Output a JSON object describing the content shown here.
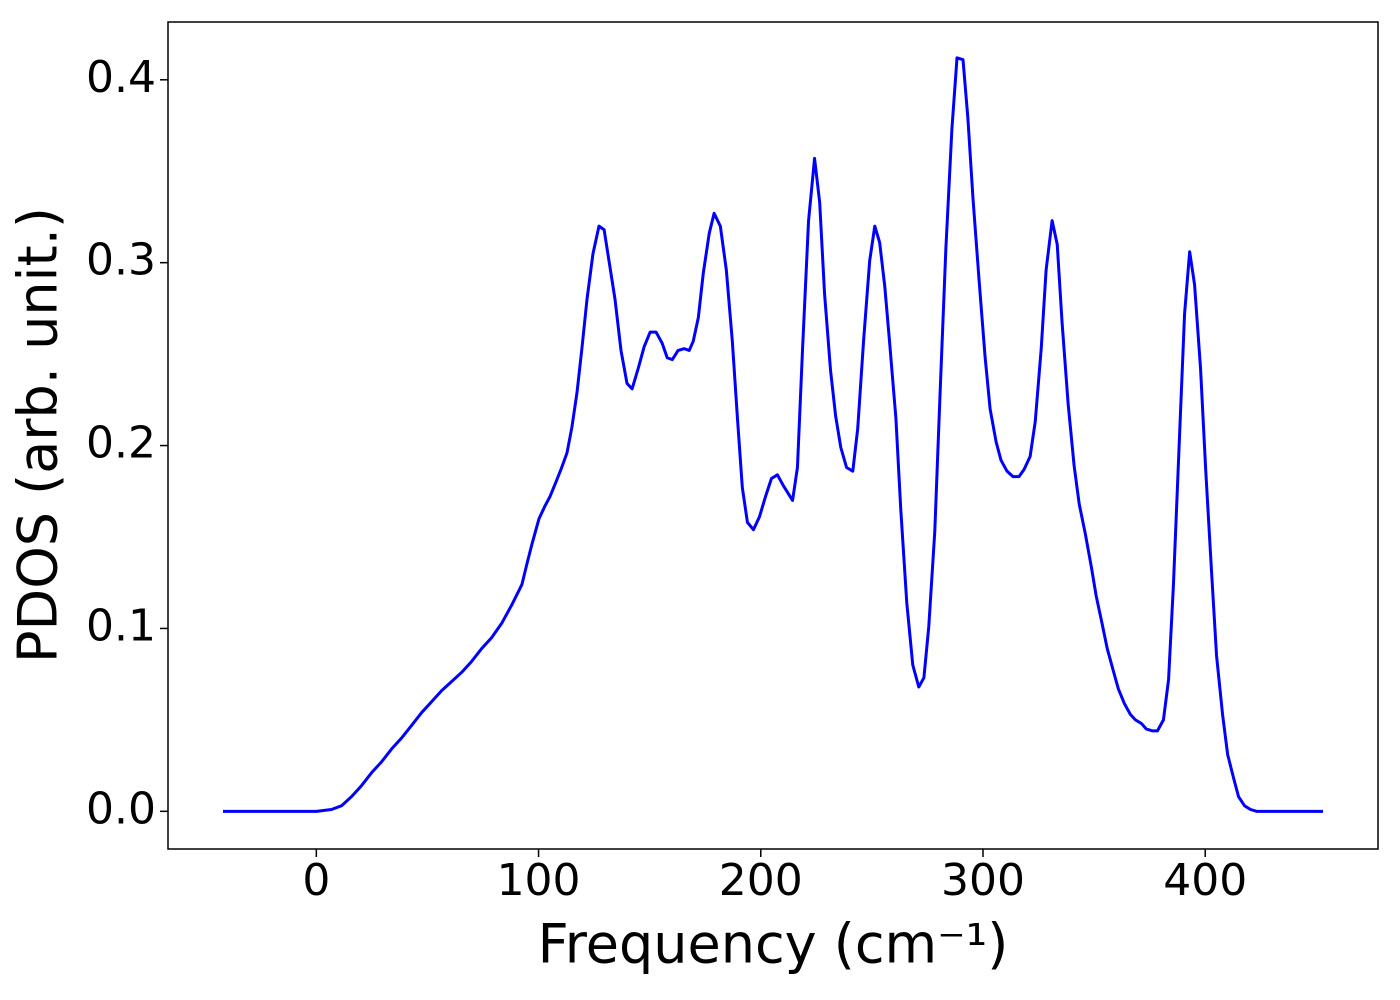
{
  "chart_data": {
    "type": "line",
    "x_label": "Frequency (cm⁻¹)",
    "y_label": "PDOS (arb. unit.)",
    "xlim": [
      -66.75,
      477.75
    ],
    "ylim": [
      -0.0206,
      0.4316
    ],
    "xticks": [
      0,
      100,
      200,
      300,
      400
    ],
    "yticks": [
      {
        "value": 0,
        "label": "0.0"
      },
      0.1,
      0.2,
      0.3,
      0.4
    ],
    "grid": false,
    "x": [
      -42,
      0,
      6.8,
      11.3,
      15.8,
      20.3,
      24.8,
      29.3,
      33.8,
      38.3,
      42.9,
      47.4,
      51.9,
      56.4,
      60.9,
      65.4,
      69.9,
      74.4,
      78.9,
      83.5,
      88,
      92.5,
      94.7,
      97,
      100.2,
      102.9,
      105.1,
      107.8,
      110.1,
      112.8,
      115,
      117.3,
      119.5,
      121.8,
      124.5,
      127.2,
      129.5,
      131.7,
      134.4,
      137.1,
      139.8,
      142.1,
      144.8,
      147.5,
      150.2,
      152.9,
      155.6,
      157.9,
      160.2,
      162.8,
      165.5,
      167.8,
      169.6,
      171.9,
      174.1,
      176.8,
      179,
      181.8,
      184.5,
      187.2,
      189.5,
      191.7,
      194,
      196.7,
      199.4,
      202.1,
      204.8,
      207.5,
      210.2,
      214.3,
      216.5,
      218.8,
      221.5,
      224.2,
      226.5,
      228.7,
      231.4,
      233.7,
      236,
      238.6,
      241.4,
      243.6,
      246.3,
      249,
      251.3,
      253.5,
      255.8,
      258,
      260.8,
      263,
      265.7,
      268.4,
      271.1,
      273.4,
      275.6,
      278.3,
      280.6,
      283.3,
      286,
      288.3,
      291,
      293.2,
      295.5,
      298.2,
      300.9,
      303.2,
      305.9,
      308.1,
      310.8,
      313.5,
      316.2,
      318.5,
      321.2,
      323.5,
      326.2,
      328.4,
      331.1,
      333.4,
      335.6,
      338.3,
      341,
      343.3,
      346,
      348.7,
      350.9,
      353.7,
      355.9,
      358.6,
      360.9,
      363.6,
      366.3,
      368.6,
      371.3,
      373.5,
      376.2,
      378.5,
      381.2,
      383.5,
      385.7,
      388.4,
      390.7,
      393,
      395.2,
      397.9,
      400.2,
      402.8,
      405.1,
      407.8,
      410.1,
      412.8,
      415,
      417.7,
      420.4,
      423.1,
      453
    ],
    "series": [
      {
        "name": "PDOS",
        "color": "#0000ff",
        "values": [
          0,
          0,
          0.001,
          0.003,
          0.008,
          0.014,
          0.021,
          0.027,
          0.034,
          0.04,
          0.047,
          0.054,
          0.06,
          0.066,
          0.071,
          0.076,
          0.082,
          0.089,
          0.095,
          0.103,
          0.113,
          0.124,
          0.135,
          0.146,
          0.16,
          0.167,
          0.172,
          0.18,
          0.187,
          0.196,
          0.21,
          0.229,
          0.253,
          0.28,
          0.305,
          0.32,
          0.318,
          0.301,
          0.28,
          0.252,
          0.234,
          0.231,
          0.242,
          0.254,
          0.262,
          0.262,
          0.256,
          0.248,
          0.247,
          0.252,
          0.253,
          0.252,
          0.257,
          0.27,
          0.294,
          0.316,
          0.327,
          0.32,
          0.296,
          0.257,
          0.215,
          0.177,
          0.158,
          0.154,
          0.161,
          0.172,
          0.182,
          0.184,
          0.178,
          0.17,
          0.188,
          0.253,
          0.323,
          0.357,
          0.333,
          0.283,
          0.241,
          0.216,
          0.199,
          0.188,
          0.186,
          0.209,
          0.258,
          0.301,
          0.32,
          0.311,
          0.287,
          0.256,
          0.215,
          0.165,
          0.114,
          0.08,
          0.068,
          0.073,
          0.101,
          0.153,
          0.226,
          0.308,
          0.373,
          0.412,
          0.411,
          0.379,
          0.335,
          0.291,
          0.249,
          0.22,
          0.202,
          0.192,
          0.186,
          0.183,
          0.183,
          0.187,
          0.194,
          0.213,
          0.253,
          0.296,
          0.323,
          0.31,
          0.267,
          0.223,
          0.189,
          0.168,
          0.152,
          0.134,
          0.118,
          0.102,
          0.089,
          0.077,
          0.067,
          0.059,
          0.053,
          0.05,
          0.048,
          0.045,
          0.044,
          0.044,
          0.05,
          0.072,
          0.124,
          0.204,
          0.272,
          0.306,
          0.288,
          0.242,
          0.187,
          0.132,
          0.085,
          0.053,
          0.031,
          0.018,
          0.008,
          0.003,
          0.001,
          0,
          0
        ]
      }
    ]
  }
}
